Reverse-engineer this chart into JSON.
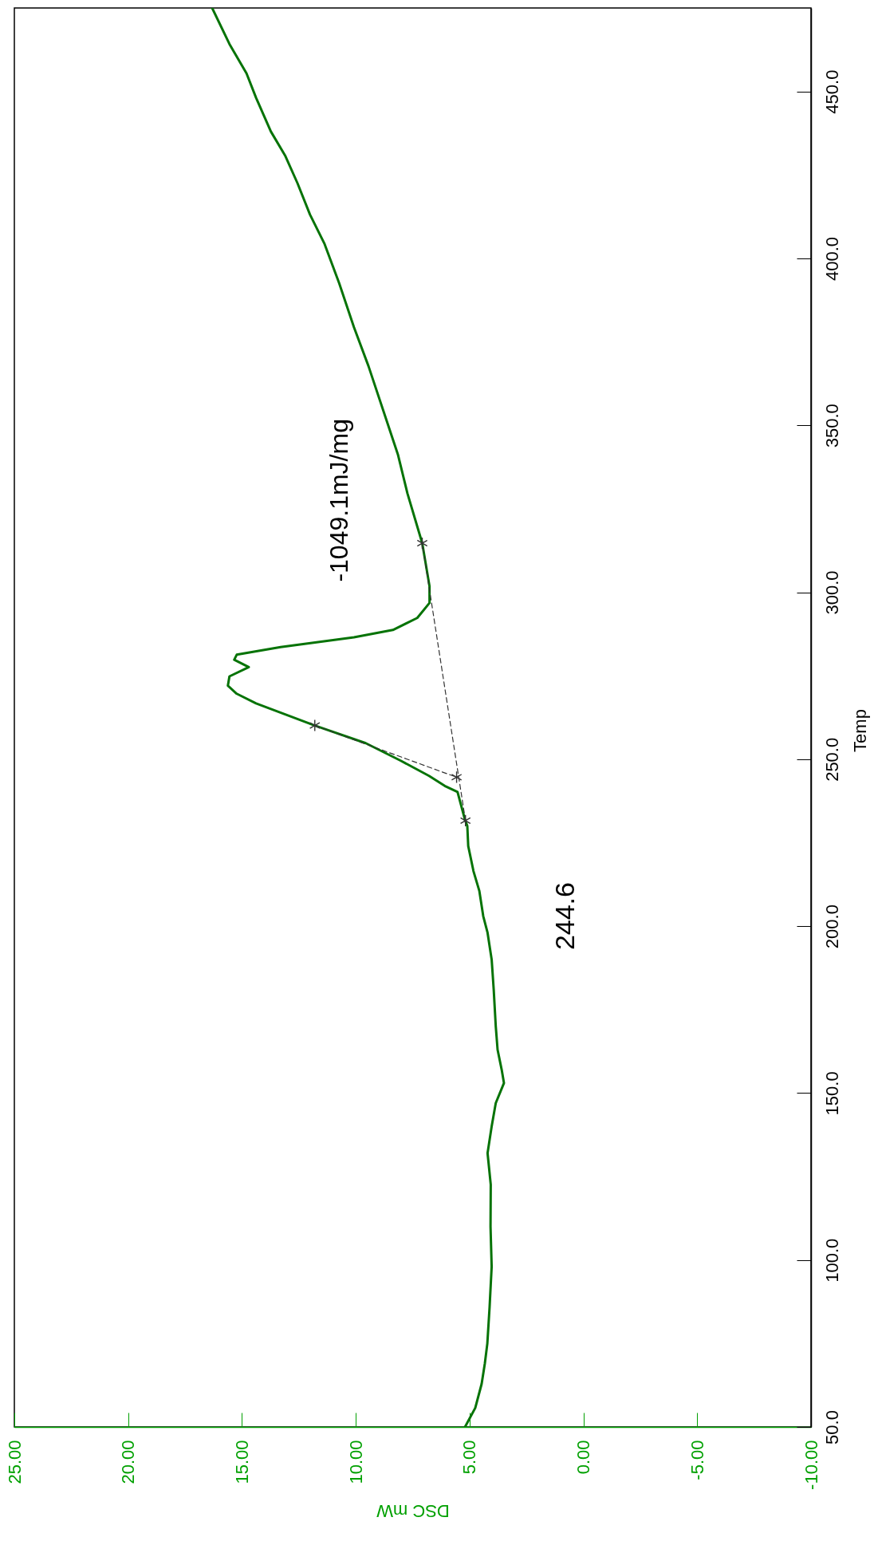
{
  "chart_data": {
    "type": "line",
    "xlabel": "DSC mW",
    "ylabel": "Temp",
    "xlim": [
      25,
      -10
    ],
    "xticks": [
      {
        "value": 25,
        "label": "25.00"
      },
      {
        "value": 20,
        "label": "20.00"
      },
      {
        "value": 15,
        "label": "15.00"
      },
      {
        "value": 10,
        "label": "10.00"
      },
      {
        "value": 5,
        "label": "5.00"
      },
      {
        "value": 0,
        "label": "0.00"
      },
      {
        "value": -5,
        "label": "-5.00"
      },
      {
        "value": -10,
        "label": "-10.00"
      }
    ],
    "ylim": [
      50,
      475
    ],
    "yticks": [
      {
        "value": 50,
        "label": "50.0"
      },
      {
        "value": 100,
        "label": "100.0"
      },
      {
        "value": 150,
        "label": "150.0"
      },
      {
        "value": 200,
        "label": "200.0"
      },
      {
        "value": 250,
        "label": "250.0"
      },
      {
        "value": 300,
        "label": "300.0"
      },
      {
        "value": 350,
        "label": "350.0"
      },
      {
        "value": 400,
        "label": "400.0"
      },
      {
        "value": 450,
        "label": "450.0"
      }
    ],
    "annotations": [
      "-1049.1mJ/mg",
      "244.6"
    ],
    "series": [
      {
        "color": "#067306",
        "line_style": "solid",
        "marker": "none",
        "x": [
          5.2,
          4.75,
          4.47,
          4.33,
          4.22,
          4.12,
          4.03,
          4.08,
          4.07,
          4.21,
          4.03,
          3.85,
          3.49,
          3.59,
          3.77,
          3.85,
          3.94,
          4.03,
          4.21,
          4.4,
          4.57,
          4.83,
          5.06,
          5.1,
          5.2,
          5.53,
          6.09,
          6.78,
          8.04,
          9.56,
          11.8,
          14.38,
          15.23,
          15.62,
          15.55,
          14.7,
          15.34,
          15.23,
          13.3,
          10.08,
          8.37,
          7.3,
          6.76,
          6.76,
          7.08,
          7.73,
          8.15,
          8.8,
          9.44,
          10.08,
          10.73,
          11.37,
          12.01,
          12.56,
          13.09,
          13.73,
          14.38,
          14.8,
          15.55,
          16.31
        ],
        "values": [
          50.0,
          55.7,
          62.9,
          69.0,
          75.0,
          86.0,
          98.0,
          110.0,
          122.6,
          132.0,
          140.0,
          147.0,
          153.0,
          157.0,
          163.0,
          170.0,
          181.0,
          190.0,
          198.0,
          203.0,
          210.5,
          216.5,
          224.0,
          230.0,
          231.8,
          240.2,
          242.0,
          245.0,
          249.6,
          254.8,
          260.1,
          266.7,
          269.6,
          272.0,
          274.8,
          277.6,
          279.8,
          281.3,
          283.6,
          286.5,
          288.7,
          292.3,
          296.8,
          301.8,
          314.7,
          329.6,
          341.3,
          354.6,
          367.7,
          379.4,
          392.6,
          404.3,
          413.1,
          422.5,
          430.6,
          438.0,
          448.1,
          455.4,
          464.2,
          475.0
        ]
      },
      {
        "color": "#333333",
        "line_style": "dashed",
        "marker": "cross",
        "x": [
          5.18,
          7.08
        ],
        "values": [
          231.6,
          314.7
        ]
      },
      {
        "color": "#333333",
        "line_style": "dashed",
        "marker": "cross",
        "x": [
          11.8,
          5.57
        ],
        "values": [
          260.1,
          244.6
        ]
      }
    ]
  }
}
